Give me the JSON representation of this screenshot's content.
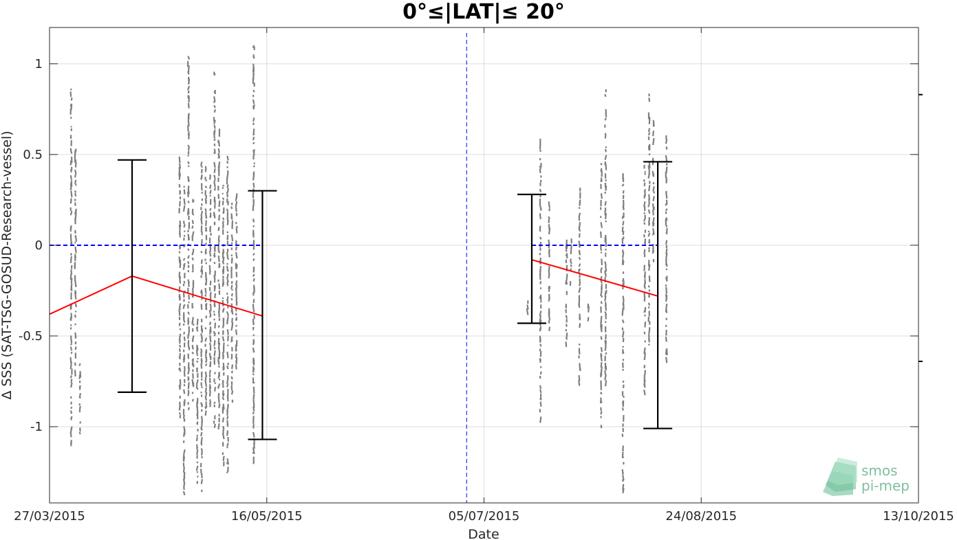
{
  "chart_data": {
    "type": "scatter",
    "title": "0°≤|LAT|≤ 20°",
    "xlabel": "Date",
    "ylabel": "Δ SSS (SAT-TSG-GOSUD-Research-vessel)",
    "x_type": "date",
    "xlim": [
      "2015-03-27",
      "2015-10-13"
    ],
    "ylim": [
      -1.42,
      1.2
    ],
    "x_ticks": [
      "2015-03-27",
      "2015-05-16",
      "2015-07-05",
      "2015-08-24",
      "2015-10-13"
    ],
    "x_tick_labels": [
      "27/03/2015",
      "16/05/2015",
      "05/07/2015",
      "24/08/2015",
      "13/10/2015"
    ],
    "y_ticks": [
      -1,
      -0.5,
      0,
      0.5,
      1
    ],
    "y_tick_labels": [
      "-1",
      "-0.5",
      "0",
      "0.5",
      "1"
    ],
    "grid": true,
    "colors": {
      "points": "#7f7f7f",
      "mean": "#ff0000",
      "errorbar": "#000000",
      "zero": "#0000ff",
      "separator": "#0000ff"
    },
    "vertical_separator": "2015-07-01",
    "scatter_columns": [
      {
        "x": "2015-04-01",
        "y_min": -1.1,
        "y_max": 0.88
      },
      {
        "x": "2015-04-02",
        "y_min": -0.7,
        "y_max": 0.55
      },
      {
        "x": "2015-04-03",
        "y_min": -1.05,
        "y_max": -0.65
      },
      {
        "x": "2015-04-26",
        "y_min": -0.95,
        "y_max": 0.5
      },
      {
        "x": "2015-04-27",
        "y_min": -1.38,
        "y_max": 0.35
      },
      {
        "x": "2015-04-28",
        "y_min": -0.9,
        "y_max": 1.05
      },
      {
        "x": "2015-04-29",
        "y_min": -0.85,
        "y_max": 0.3
      },
      {
        "x": "2015-04-30",
        "y_min": -1.3,
        "y_max": -0.4
      },
      {
        "x": "2015-05-01",
        "y_min": -1.35,
        "y_max": 0.48
      },
      {
        "x": "2015-05-02",
        "y_min": -0.95,
        "y_max": 0.45
      },
      {
        "x": "2015-05-03",
        "y_min": -0.9,
        "y_max": 0.4
      },
      {
        "x": "2015-05-04",
        "y_min": -1.0,
        "y_max": 0.98
      },
      {
        "x": "2015-05-05",
        "y_min": -1.0,
        "y_max": 0.65
      },
      {
        "x": "2015-05-06",
        "y_min": -1.2,
        "y_max": 0.35
      },
      {
        "x": "2015-05-07",
        "y_min": -1.25,
        "y_max": 0.5
      },
      {
        "x": "2015-05-08",
        "y_min": -0.88,
        "y_max": 0.25
      },
      {
        "x": "2015-05-09",
        "y_min": -0.7,
        "y_max": 0.3
      },
      {
        "x": "2015-05-13",
        "y_min": -1.2,
        "y_max": 1.15
      },
      {
        "x": "2015-07-15",
        "y_min": -0.35,
        "y_max": -0.3
      },
      {
        "x": "2015-07-18",
        "y_min": -0.95,
        "y_max": 0.6
      },
      {
        "x": "2015-07-20",
        "y_min": -0.45,
        "y_max": 0.25
      },
      {
        "x": "2015-07-24",
        "y_min": -0.55,
        "y_max": 0.05
      },
      {
        "x": "2015-07-25",
        "y_min": -0.2,
        "y_max": 0.05
      },
      {
        "x": "2015-07-27",
        "y_min": -0.78,
        "y_max": 0.32
      },
      {
        "x": "2015-07-29",
        "y_min": -0.4,
        "y_max": -0.3
      },
      {
        "x": "2015-08-01",
        "y_min": -1.02,
        "y_max": 0.47
      },
      {
        "x": "2015-08-02",
        "y_min": -0.75,
        "y_max": 0.86
      },
      {
        "x": "2015-08-06",
        "y_min": -1.36,
        "y_max": 0.42
      },
      {
        "x": "2015-08-11",
        "y_min": -0.8,
        "y_max": 0.48
      },
      {
        "x": "2015-08-12",
        "y_min": -0.55,
        "y_max": 0.85
      },
      {
        "x": "2015-08-13",
        "y_min": -0.1,
        "y_max": 0.7
      },
      {
        "x": "2015-08-16",
        "y_min": -0.62,
        "y_max": 0.62
      }
    ],
    "series": [
      {
        "name": "",
        "type": "line",
        "color": "#ff0000",
        "x": [
          "2015-03-27",
          "2015-04-15",
          "2015-05-15"
        ],
        "y": [
          -0.38,
          -0.17,
          -0.39
        ]
      },
      {
        "name": "",
        "type": "line",
        "color": "#ff0000",
        "x": [
          "2015-07-16",
          "2015-08-14"
        ],
        "y": [
          -0.08,
          -0.28
        ]
      },
      {
        "name": "",
        "type": "errorbar",
        "color": "#000000",
        "x": [
          "2015-04-15",
          "2015-05-15",
          "2015-07-16",
          "2015-08-14"
        ],
        "lower": [
          -0.81,
          -1.07,
          -0.43,
          -1.01
        ],
        "upper": [
          0.47,
          0.3,
          0.28,
          0.46
        ]
      },
      {
        "name": "",
        "type": "reference",
        "color": "#0000ff",
        "segments": [
          {
            "x": [
              "2015-03-27",
              "2015-05-15"
            ],
            "y": 0
          },
          {
            "x": [
              "2015-07-16",
              "2015-08-14"
            ],
            "y": 0
          }
        ]
      }
    ],
    "right_edge_marks": [
      0.83,
      -0.64
    ]
  },
  "logo": {
    "line1": "smos",
    "line2": "pi-mep"
  }
}
